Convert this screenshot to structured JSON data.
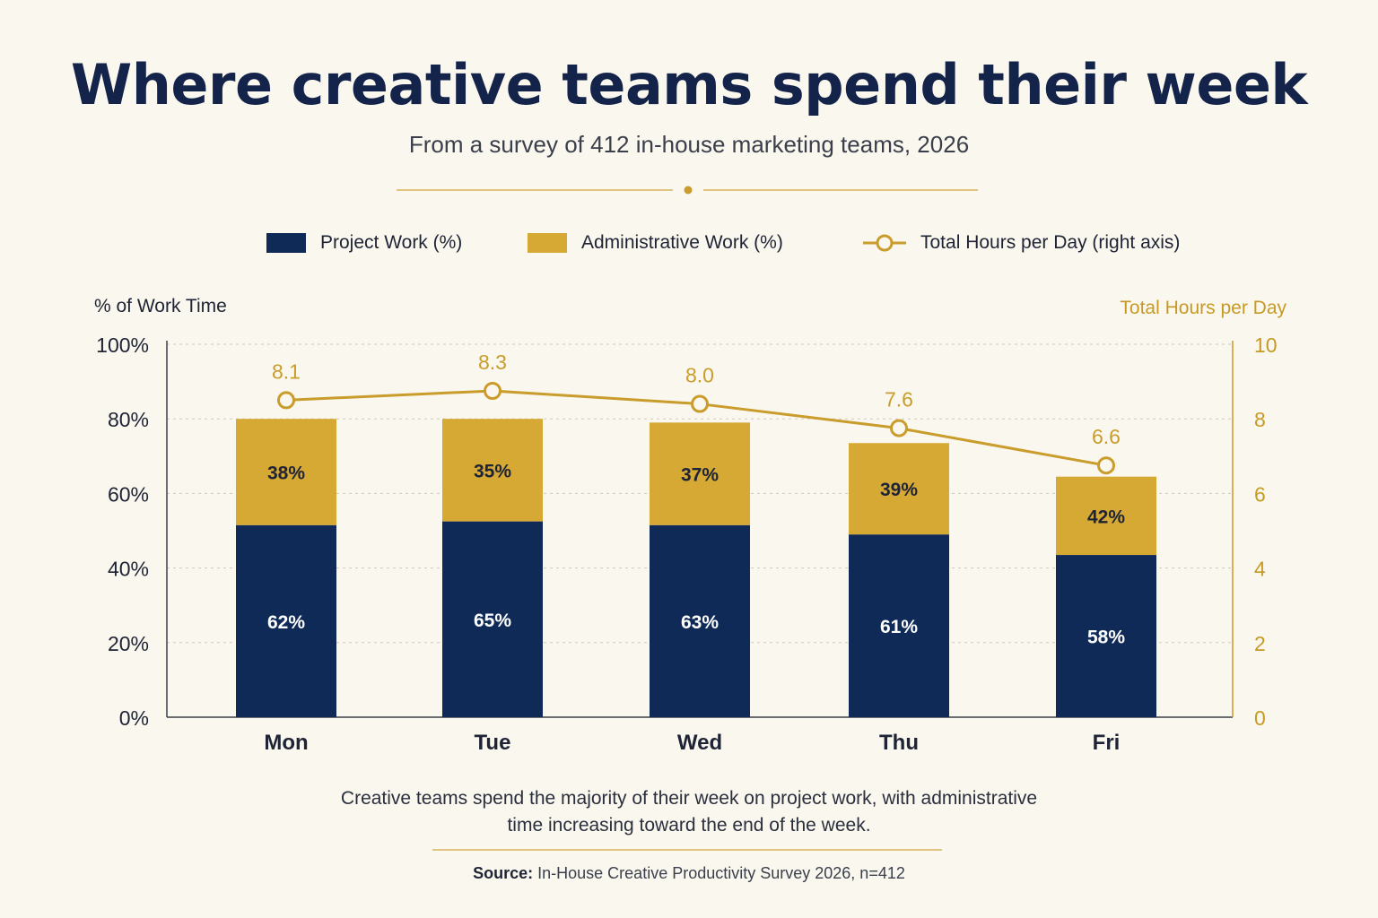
{
  "header": {
    "title": "Where creative teams spend their week",
    "subtitle": "From a survey of 412 in-house marketing teams, 2026"
  },
  "legend": {
    "project": "Project Work (%)",
    "admin": "Administrative Work (%)",
    "hours": "Total Hours per Day (right axis)"
  },
  "colors": {
    "project": "#0f2a57",
    "admin": "#d6a934",
    "hours_line": "#c99c2b",
    "background": "#faf7ee"
  },
  "chart_data": {
    "type": "bar",
    "stacked": true,
    "categories": [
      "Mon",
      "Tue",
      "Wed",
      "Thu",
      "Fri"
    ],
    "series": [
      {
        "name": "Project Work (%)",
        "values": [
          62,
          65,
          63,
          61,
          58
        ],
        "value_labels": [
          "62%",
          "65%",
          "63%",
          "61%",
          "58%"
        ],
        "display_height_pct": [
          51.5,
          52.5,
          51.5,
          49,
          43.5
        ]
      },
      {
        "name": "Administrative Work (%)",
        "values": [
          38,
          35,
          37,
          39,
          42
        ],
        "value_labels": [
          "38%",
          "35%",
          "37%",
          "39%",
          "42%"
        ],
        "display_height_pct": [
          28.5,
          27.5,
          27.5,
          24.5,
          21
        ]
      },
      {
        "name": "Total Hours per Day (right axis)",
        "type": "line",
        "axis": "right",
        "values": [
          8.1,
          8.3,
          8.0,
          7.6,
          6.6
        ],
        "value_labels": [
          "8.1",
          "8.3",
          "8.0",
          "7.6",
          "6.6"
        ],
        "display_y": [
          8.5,
          8.75,
          8.4,
          7.75,
          6.75
        ]
      }
    ],
    "ylabel": "% of Work Time",
    "ylabel_right": "Total Hours per Day",
    "ylim": [
      0,
      100
    ],
    "ylim_right": [
      0,
      10
    ],
    "yticks": [
      "0%",
      "20%",
      "40%",
      "60%",
      "80%",
      "100%"
    ],
    "yticks_right": [
      "0",
      "2",
      "4",
      "6",
      "8",
      "10"
    ],
    "grid": true,
    "legend_position": "top"
  },
  "footer": {
    "note_line1": "Creative teams spend the majority of their week on project work, with administrative",
    "note_line2": "time increasing toward the end of the week.",
    "source_label": "Source:",
    "source_text": " In-House Creative Productivity Survey 2026, n=412"
  }
}
